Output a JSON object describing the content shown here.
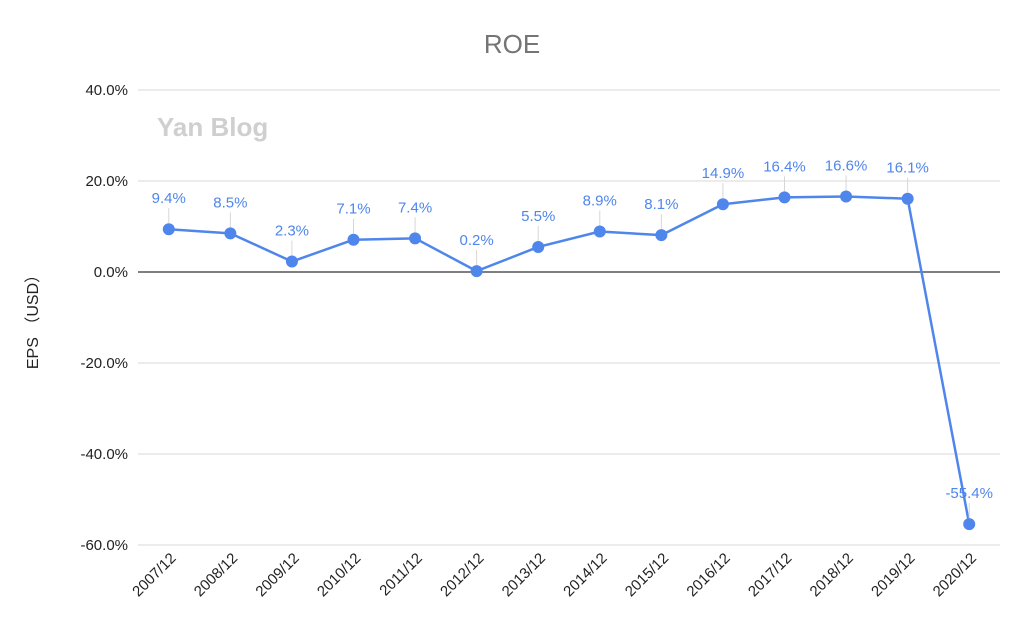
{
  "chart_data": {
    "type": "line",
    "title": "ROE",
    "xlabel": "",
    "ylabel": "EPS （USD）",
    "watermark": "Yan Blog",
    "categories": [
      "2007/12",
      "2008/12",
      "2009/12",
      "2010/12",
      "2011/12",
      "2012/12",
      "2013/12",
      "2014/12",
      "2015/12",
      "2016/12",
      "2017/12",
      "2018/12",
      "2019/12",
      "2020/12"
    ],
    "series": [
      {
        "values": [
          9.4,
          8.5,
          2.3,
          7.1,
          7.4,
          0.2,
          5.5,
          8.9,
          8.1,
          14.9,
          16.4,
          16.6,
          16.1,
          -55.4
        ],
        "labels": [
          "9.4%",
          "8.5%",
          "2.3%",
          "7.1%",
          "7.4%",
          "0.2%",
          "5.5%",
          "8.9%",
          "8.1%",
          "14.9%",
          "16.4%",
          "16.6%",
          "16.1%",
          "-55.4%"
        ],
        "color": "#4f86ec"
      }
    ],
    "ylim": [
      -60,
      40
    ],
    "yticks": [
      40,
      20,
      0,
      -20,
      -40,
      -60
    ],
    "ytick_labels": [
      "40.0%",
      "20.0%",
      "0.0%",
      "-20.0%",
      "-40.0%",
      "-60.0%"
    ],
    "grid": true,
    "legend": "none"
  }
}
